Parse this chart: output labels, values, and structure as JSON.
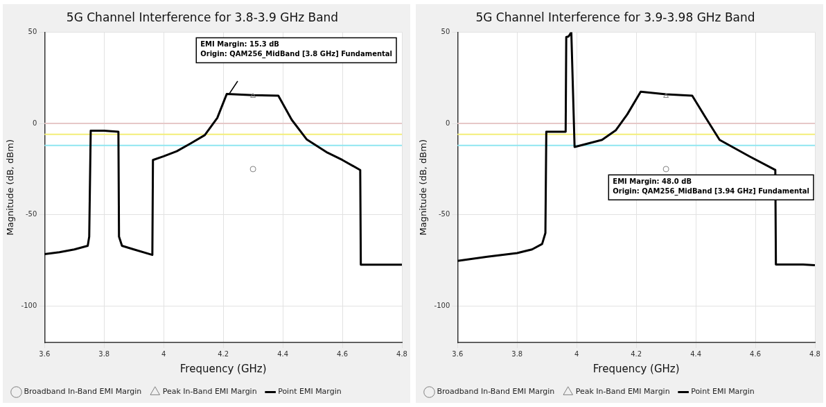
{
  "chart_data": [
    {
      "type": "line",
      "title": "5G Channel Interference for 3.8-3.9 GHz Band",
      "xlabel": "Frequency (GHz)",
      "ylabel": "Magnitude (dB, dBm)",
      "xlim": [
        3.6,
        4.8
      ],
      "xticks": [
        3.6,
        3.8,
        4,
        4.2,
        4.4,
        4.6,
        4.8
      ],
      "ylim": [
        -120,
        50
      ],
      "yticks": [
        -100,
        -50,
        0,
        50
      ],
      "grid": true,
      "legend": "bottom",
      "ref_lines": [
        {
          "axis": "y",
          "value": 0,
          "color": "#e6c8c8"
        },
        {
          "axis": "y",
          "value": -6,
          "color": "#f3ee78"
        },
        {
          "axis": "y",
          "value": -12,
          "color": "#8fe6f0"
        }
      ],
      "annotations": [
        "EMI Margin: 15.3 dB\nOrigin: QAM256_MidBand [3.8 GHz] Fundamental"
      ],
      "series": [
        {
          "name": "Broadband In-Band EMI Margin",
          "type": "scatter",
          "marker": "circle",
          "color": "#808080",
          "x": [
            4.3
          ],
          "values": [
            -25
          ]
        },
        {
          "name": "Peak In-Band EMI Margin",
          "type": "scatter",
          "marker": "triangle",
          "color": "#808080",
          "x": [
            4.3
          ],
          "values": [
            15
          ]
        },
        {
          "name": "Point EMI Margin",
          "type": "line",
          "marker": "none",
          "color": "#000000",
          "x": [
            3.6,
            3.65,
            3.7,
            3.745,
            3.75,
            3.755,
            3.8,
            3.848,
            3.85,
            3.86,
            3.9,
            3.962,
            3.964,
            4.0,
            4.044,
            4.09,
            4.138,
            4.18,
            4.212,
            4.3,
            4.385,
            4.43,
            4.48,
            4.55,
            4.6,
            4.66,
            4.662,
            4.8
          ],
          "values": [
            -71.6,
            -70.5,
            -69,
            -67,
            -62,
            -4,
            -4,
            -4.5,
            -62,
            -67,
            -69,
            -72,
            -20,
            -18,
            -15.2,
            -11,
            -6.4,
            3,
            16.2,
            15.5,
            15.2,
            2,
            -8.7,
            -16,
            -20,
            -25.5,
            -77.4,
            -77.4
          ]
        }
      ]
    },
    {
      "type": "line",
      "title": "5G Channel Interference for 3.9-3.98 GHz Band",
      "xlabel": "Frequency (GHz)",
      "ylabel": "Magnitude (dB, dBm)",
      "xlim": [
        3.6,
        4.8
      ],
      "xticks": [
        3.6,
        3.8,
        4,
        4.2,
        4.4,
        4.6,
        4.8
      ],
      "ylim": [
        -120,
        50
      ],
      "yticks": [
        -100,
        -50,
        0,
        50
      ],
      "grid": true,
      "legend": "bottom",
      "ref_lines": [
        {
          "axis": "y",
          "value": 0,
          "color": "#e6c8c8"
        },
        {
          "axis": "y",
          "value": -6,
          "color": "#f3ee78"
        },
        {
          "axis": "y",
          "value": -12,
          "color": "#8fe6f0"
        }
      ],
      "annotations": [
        "EMI Margin: 48.0 dB\nOrigin: QAM256_MidBand [3.94 GHz] Fundamental"
      ],
      "series": [
        {
          "name": "Broadband In-Band EMI Margin",
          "type": "scatter",
          "marker": "circle",
          "color": "#808080",
          "x": [
            4.3
          ],
          "values": [
            -25
          ]
        },
        {
          "name": "Peak In-Band EMI Margin",
          "type": "scatter",
          "marker": "triangle",
          "color": "#808080",
          "x": [
            4.3
          ],
          "values": [
            15
          ]
        },
        {
          "name": "Point EMI Margin",
          "type": "line",
          "marker": "none",
          "color": "#000000",
          "x": [
            3.6,
            3.7,
            3.8,
            3.85,
            3.884,
            3.895,
            3.898,
            3.963,
            3.965,
            3.973,
            3.982,
            3.993,
            4.085,
            4.131,
            4.17,
            4.215,
            4.3,
            4.388,
            4.43,
            4.48,
            4.58,
            4.667,
            4.669,
            4.76,
            4.8
          ],
          "values": [
            -75.3,
            -73,
            -71,
            -69,
            -66,
            -60,
            -4.5,
            -4.5,
            47.3,
            47.7,
            50,
            -12.9,
            -9,
            -3.8,
            5,
            17.4,
            16,
            15.2,
            4,
            -9,
            -18,
            -25.5,
            -77.3,
            -77.3,
            -77.7
          ]
        }
      ]
    }
  ]
}
